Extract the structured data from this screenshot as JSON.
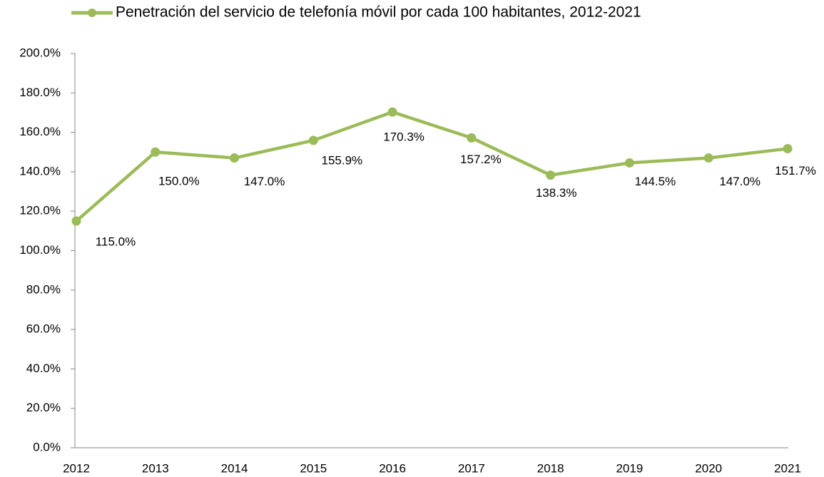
{
  "chart_data": {
    "type": "line",
    "categories": [
      "2012",
      "2013",
      "2014",
      "2015",
      "2016",
      "2017",
      "2018",
      "2019",
      "2020",
      "2021"
    ],
    "series": [
      {
        "name": "Penetración del servicio de telefonía móvil por cada 100 habitantes, 2012-2021",
        "color": "#9bbb59",
        "values": [
          115.0,
          150.0,
          147.0,
          155.9,
          170.3,
          157.2,
          138.3,
          144.5,
          147.0,
          151.7
        ],
        "value_labels": [
          "115.0%",
          "150.0%",
          "147.0%",
          "155.9%",
          "170.3%",
          "157.2%",
          "138.3%",
          "144.5%",
          "147.0%",
          "151.7%"
        ]
      }
    ],
    "ylim": [
      0,
      200
    ],
    "yticks": [
      {
        "value": 0,
        "label": "0.0%"
      },
      {
        "value": 20,
        "label": "20.0%"
      },
      {
        "value": 40,
        "label": "40.0%"
      },
      {
        "value": 60,
        "label": "60.0%"
      },
      {
        "value": 80,
        "label": "80.0%"
      },
      {
        "value": 100,
        "label": "100.0%"
      },
      {
        "value": 120,
        "label": "120.0%"
      },
      {
        "value": 140,
        "label": "140.0%"
      },
      {
        "value": 160,
        "label": "160.0%"
      },
      {
        "value": 180,
        "label": "180.0%"
      },
      {
        "value": 200,
        "label": "200.0%"
      }
    ],
    "legend": "top",
    "grid": false
  }
}
